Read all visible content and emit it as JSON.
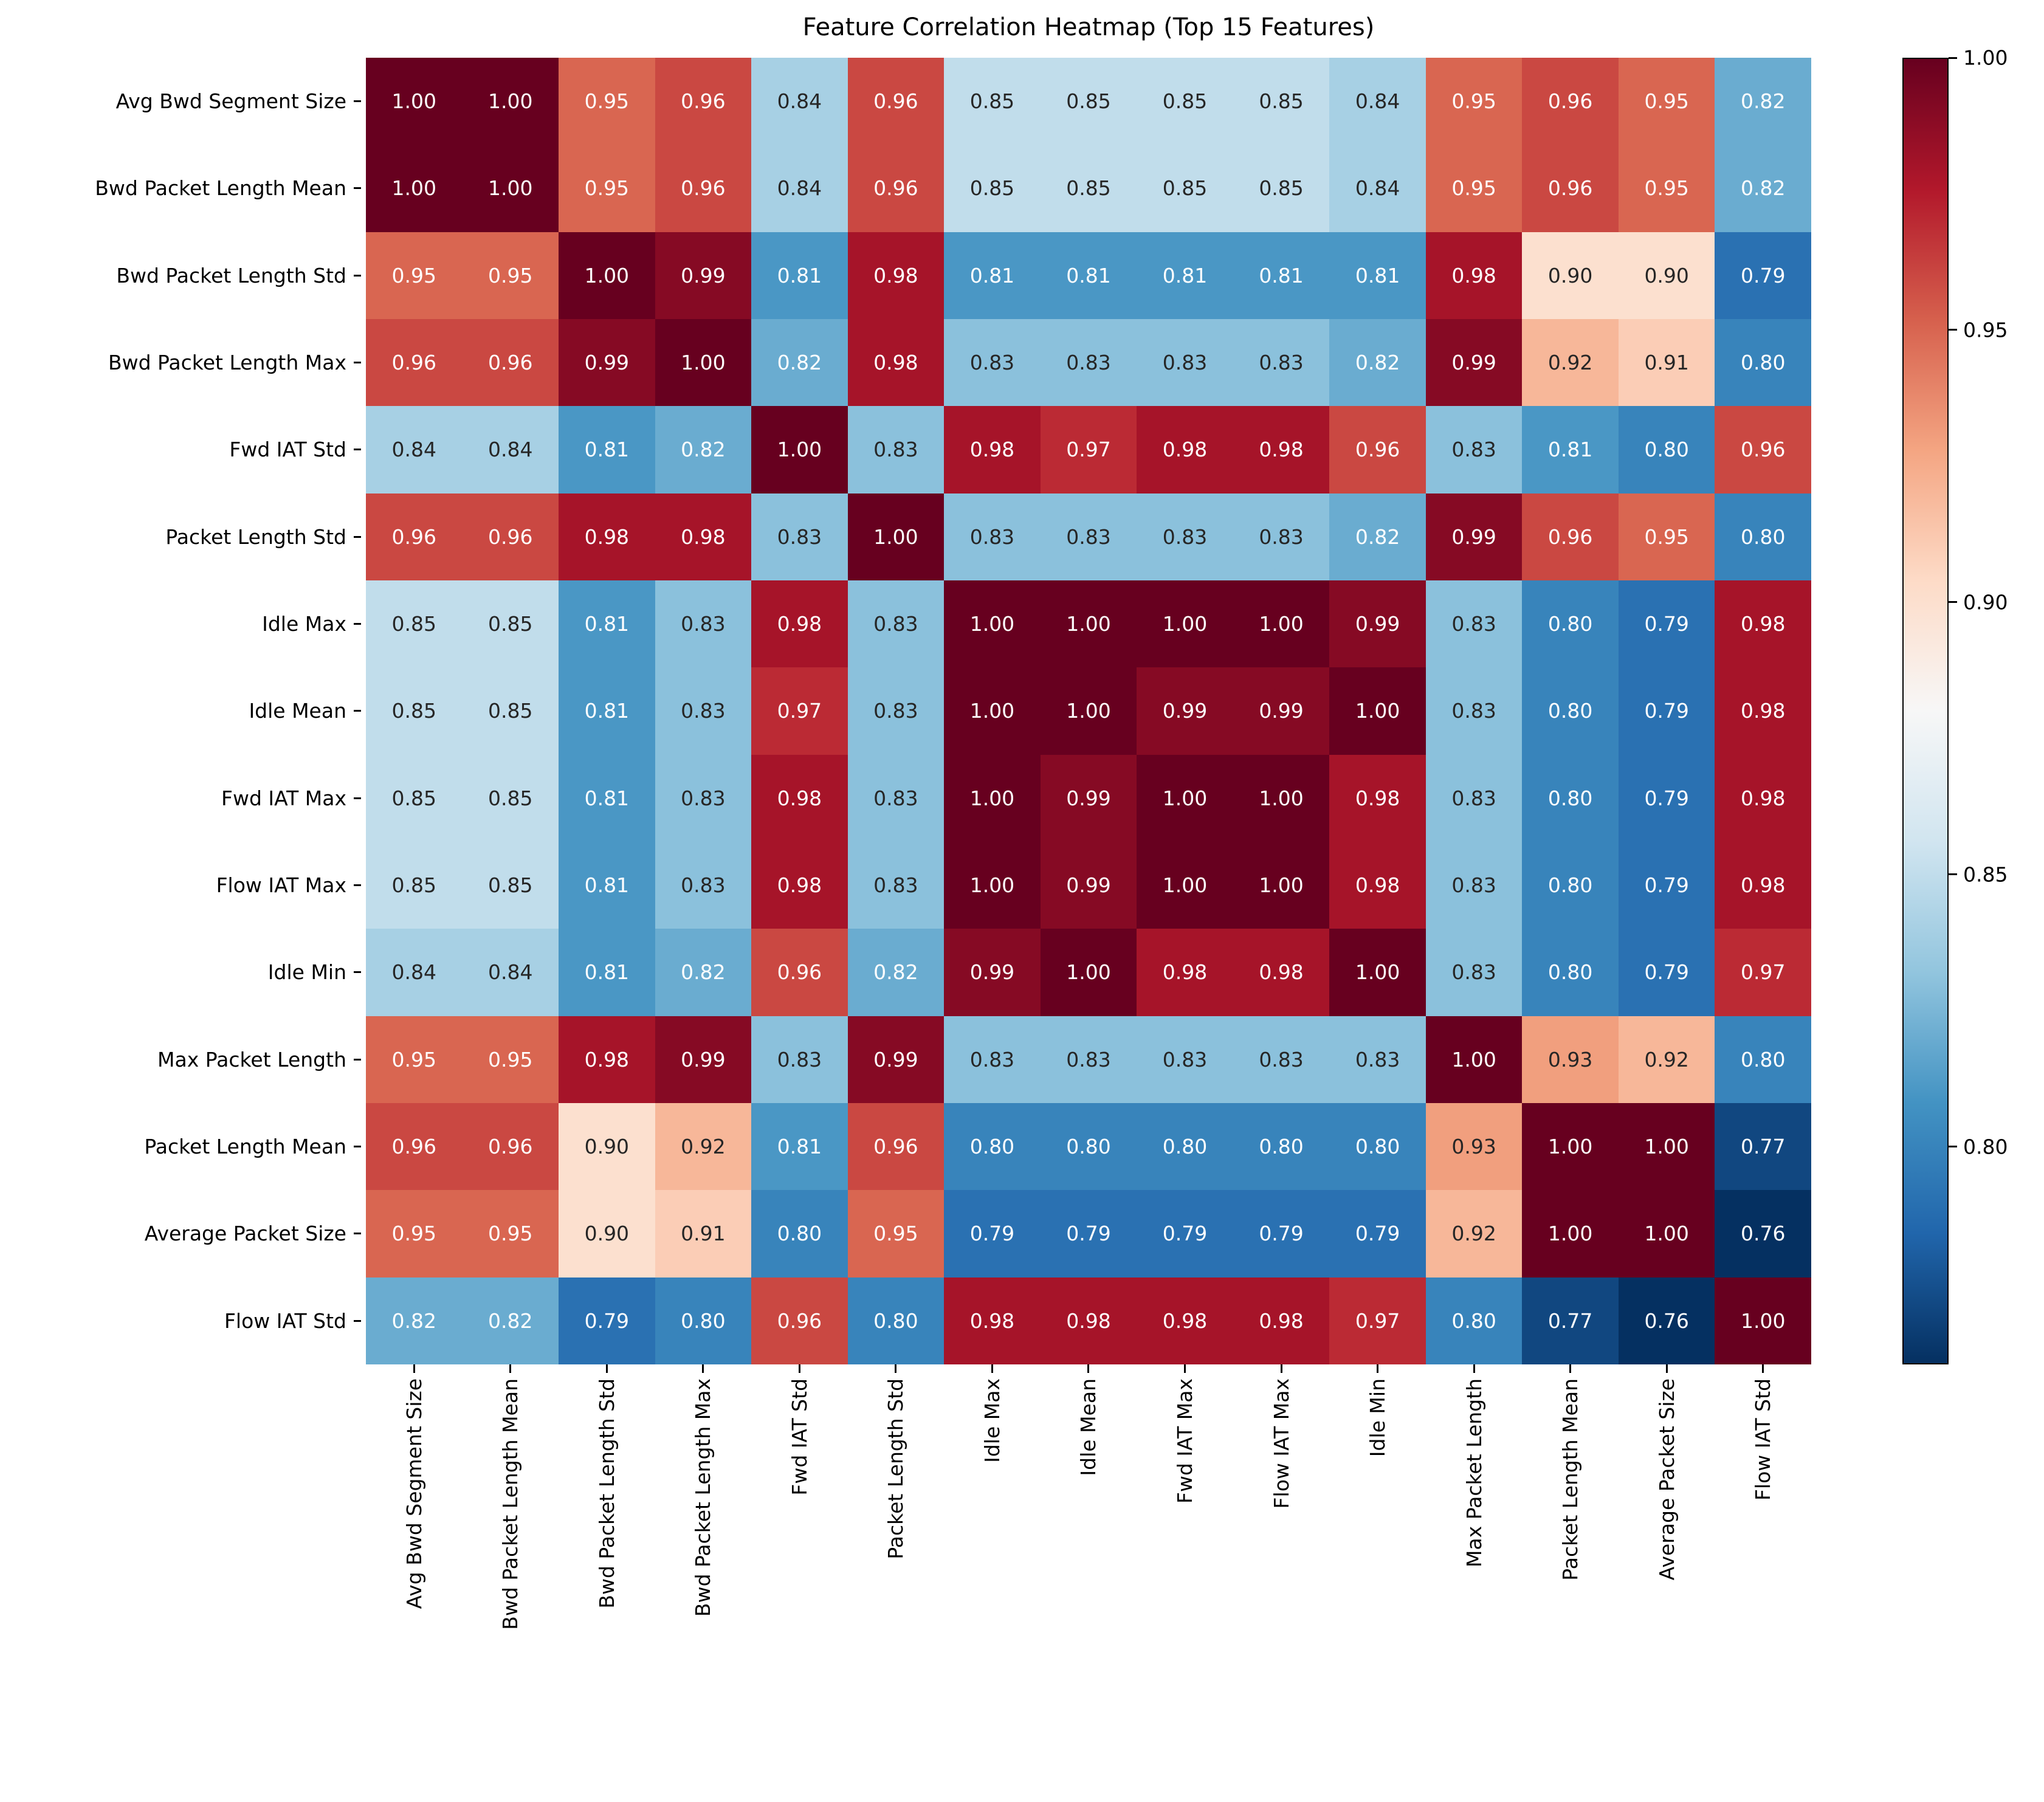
{
  "title": "Feature Correlation Heatmap (Top 15 Features)",
  "chart_data": {
    "type": "heatmap",
    "title": "Feature Correlation Heatmap (Top 15 Features)",
    "labels": [
      "Avg Bwd Segment Size",
      "Bwd Packet Length Mean",
      "Bwd Packet Length Std",
      "Bwd Packet Length Max",
      "Fwd IAT Std",
      "Packet Length Std",
      "Idle Max",
      "Idle Mean",
      "Fwd IAT Max",
      "Flow IAT Max",
      "Idle Min",
      "Max Packet Length",
      "Packet Length Mean",
      "Average Packet Size",
      "Flow IAT Std"
    ],
    "matrix": [
      [
        1.0,
        1.0,
        0.95,
        0.96,
        0.84,
        0.96,
        0.85,
        0.85,
        0.85,
        0.85,
        0.84,
        0.95,
        0.96,
        0.95,
        0.82
      ],
      [
        1.0,
        1.0,
        0.95,
        0.96,
        0.84,
        0.96,
        0.85,
        0.85,
        0.85,
        0.85,
        0.84,
        0.95,
        0.96,
        0.95,
        0.82
      ],
      [
        0.95,
        0.95,
        1.0,
        0.99,
        0.81,
        0.98,
        0.81,
        0.81,
        0.81,
        0.81,
        0.81,
        0.98,
        0.9,
        0.9,
        0.79
      ],
      [
        0.96,
        0.96,
        0.99,
        1.0,
        0.82,
        0.98,
        0.83,
        0.83,
        0.83,
        0.83,
        0.82,
        0.99,
        0.92,
        0.91,
        0.8
      ],
      [
        0.84,
        0.84,
        0.81,
        0.82,
        1.0,
        0.83,
        0.98,
        0.97,
        0.98,
        0.98,
        0.96,
        0.83,
        0.81,
        0.8,
        0.96
      ],
      [
        0.96,
        0.96,
        0.98,
        0.98,
        0.83,
        1.0,
        0.83,
        0.83,
        0.83,
        0.83,
        0.82,
        0.99,
        0.96,
        0.95,
        0.8
      ],
      [
        0.85,
        0.85,
        0.81,
        0.83,
        0.98,
        0.83,
        1.0,
        1.0,
        1.0,
        1.0,
        0.99,
        0.83,
        0.8,
        0.79,
        0.98
      ],
      [
        0.85,
        0.85,
        0.81,
        0.83,
        0.97,
        0.83,
        1.0,
        1.0,
        0.99,
        0.99,
        1.0,
        0.83,
        0.8,
        0.79,
        0.98
      ],
      [
        0.85,
        0.85,
        0.81,
        0.83,
        0.98,
        0.83,
        1.0,
        0.99,
        1.0,
        1.0,
        0.98,
        0.83,
        0.8,
        0.79,
        0.98
      ],
      [
        0.85,
        0.85,
        0.81,
        0.83,
        0.98,
        0.83,
        1.0,
        0.99,
        1.0,
        1.0,
        0.98,
        0.83,
        0.8,
        0.79,
        0.98
      ],
      [
        0.84,
        0.84,
        0.81,
        0.82,
        0.96,
        0.82,
        0.99,
        1.0,
        0.98,
        0.98,
        1.0,
        0.83,
        0.8,
        0.79,
        0.97
      ],
      [
        0.95,
        0.95,
        0.98,
        0.99,
        0.83,
        0.99,
        0.83,
        0.83,
        0.83,
        0.83,
        0.83,
        1.0,
        0.93,
        0.92,
        0.8
      ],
      [
        0.96,
        0.96,
        0.9,
        0.92,
        0.81,
        0.96,
        0.8,
        0.8,
        0.8,
        0.8,
        0.8,
        0.93,
        1.0,
        1.0,
        0.77
      ],
      [
        0.95,
        0.95,
        0.9,
        0.91,
        0.8,
        0.95,
        0.79,
        0.79,
        0.79,
        0.79,
        0.79,
        0.92,
        1.0,
        1.0,
        0.76
      ],
      [
        0.82,
        0.82,
        0.79,
        0.8,
        0.96,
        0.8,
        0.98,
        0.98,
        0.98,
        0.98,
        0.97,
        0.8,
        0.77,
        0.76,
        1.0
      ]
    ],
    "vmin": 0.76,
    "vmax": 1.0,
    "colormap": "RdBu_r",
    "colorbar_ticks": [
      1.0,
      0.95,
      0.9,
      0.85,
      0.8
    ],
    "legend_position": "right",
    "grid": false,
    "value_format": "0.00"
  },
  "colors": {
    "background": "#ffffff",
    "annotation_dark": "#262626",
    "annotation_light": "#ffffff",
    "rdbu_r_stops": [
      "#053061",
      "#2166ac",
      "#4393c3",
      "#92c5de",
      "#d1e5f0",
      "#f7f7f7",
      "#fddbc7",
      "#f4a582",
      "#d6604d",
      "#b2182b",
      "#67001f"
    ]
  }
}
